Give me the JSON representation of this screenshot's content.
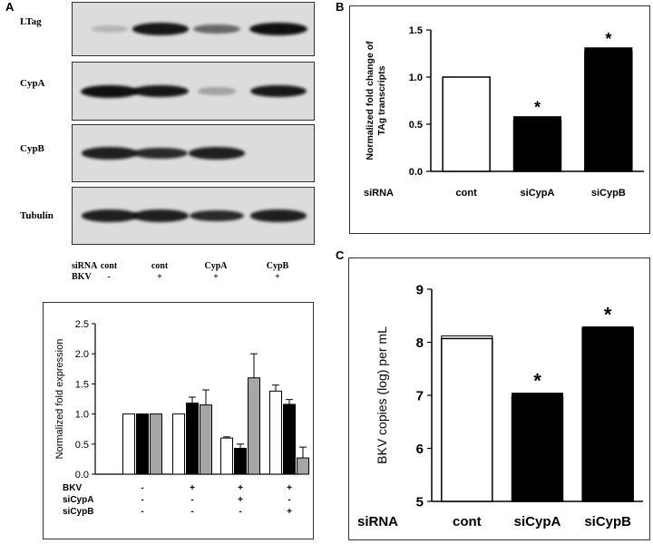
{
  "panel_a": {
    "letter": "A",
    "blot_labels": [
      "LTag",
      "CypA",
      "CypB",
      "Tubulin"
    ],
    "conditions": {
      "row1_label": "siRNA",
      "row1_values": [
        "cont",
        "cont",
        "CypA",
        "CypB"
      ],
      "row2_label": "BKV",
      "row2_values": [
        "-",
        "+",
        "+",
        "+"
      ]
    },
    "band_intensity": {
      "LTag": [
        0.05,
        0.95,
        0.5,
        1.0
      ],
      "CypA": [
        1.0,
        0.95,
        0.15,
        0.95
      ],
      "CypB": [
        0.9,
        0.85,
        0.9,
        0.0
      ],
      "Tubulin": [
        0.9,
        0.9,
        0.85,
        0.9
      ]
    }
  },
  "panel_b": {
    "letter": "B"
  },
  "panel_c": {
    "letter": "C"
  },
  "chart_data": [
    {
      "id": "A-quant",
      "type": "bar",
      "ylabel": "Normalized fold expression",
      "ylim": [
        0,
        2.5
      ],
      "yticks": [
        "0.0",
        "0.5",
        "1.0",
        "1.5",
        "2.0",
        "2.5"
      ],
      "groups": 4,
      "series": [
        {
          "fill": "#ffffff",
          "values": [
            1.0,
            1.0,
            0.6,
            1.38
          ],
          "errors": [
            0.0,
            0.0,
            0.02,
            0.1
          ]
        },
        {
          "fill": "#000000",
          "values": [
            1.0,
            1.18,
            0.43,
            1.16
          ],
          "errors": [
            0.0,
            0.1,
            0.07,
            0.08
          ]
        },
        {
          "fill": "#a6a6a6",
          "values": [
            1.0,
            1.15,
            1.6,
            0.27
          ],
          "errors": [
            0.0,
            0.25,
            0.4,
            0.18
          ]
        }
      ],
      "condition_table": {
        "labels": [
          "BKV",
          "siCypA",
          "siCypB"
        ],
        "values": [
          [
            "-",
            "+",
            "+",
            "+"
          ],
          [
            "-",
            "-",
            "+",
            "-"
          ],
          [
            "-",
            "-",
            "-",
            "+"
          ]
        ]
      }
    },
    {
      "id": "B",
      "type": "bar",
      "ylabel_lines": [
        "Normalized fold change of",
        "TAg transcripts"
      ],
      "ylim": [
        0,
        1.5
      ],
      "yticks": [
        "0.0",
        "0.5",
        "1.0",
        "1.5"
      ],
      "xlabel_prefix": "siRNA",
      "categories": [
        "cont",
        "siCypA",
        "siCypB"
      ],
      "values": [
        1.0,
        0.54,
        1.27
      ],
      "errors": [
        0.0,
        0.04,
        0.04
      ],
      "fills": [
        "#ffffff",
        "#000000",
        "#000000"
      ],
      "annotations": [
        "",
        "*",
        "*"
      ]
    },
    {
      "id": "C",
      "type": "bar",
      "ylabel": "BKV copies (log) per mL",
      "ylim": [
        5,
        9
      ],
      "yticks": [
        "5",
        "6",
        "7",
        "8",
        "9"
      ],
      "xlabel_prefix": "siRNA",
      "categories": [
        "cont",
        "siCypA",
        "siCypB"
      ],
      "values": [
        8.07,
        6.97,
        8.25
      ],
      "errors": [
        0.05,
        0.07,
        0.04
      ],
      "fills": [
        "#ffffff",
        "#000000",
        "#000000"
      ],
      "annotations": [
        "",
        "*",
        "*"
      ]
    }
  ]
}
